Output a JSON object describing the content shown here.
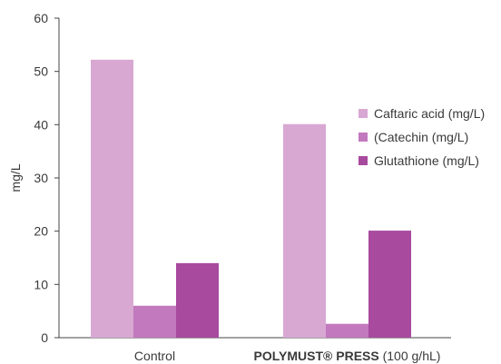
{
  "chart_data": {
    "type": "bar",
    "title": "",
    "xlabel": "",
    "ylabel": "mg/L",
    "ylim": [
      0,
      60
    ],
    "yticks": [
      0,
      10,
      20,
      30,
      40,
      50,
      60
    ],
    "grid": false,
    "legend_position": "right",
    "categories": [
      {
        "bold": "",
        "normal": "Control"
      },
      {
        "bold": "POLYMUST® PRESS",
        "normal": " (100 g/hL)"
      }
    ],
    "series": [
      {
        "name": "Caftaric acid  (mg/L)",
        "color": "#d8a8d3",
        "values": [
          52.2,
          40.1
        ]
      },
      {
        "name": "(Catechin (mg/L)",
        "color": "#c279be",
        "values": [
          6.0,
          2.6
        ]
      },
      {
        "name": "Glutathione (mg/L)",
        "color": "#a84a9e",
        "values": [
          14.0,
          20.1
        ]
      }
    ]
  }
}
